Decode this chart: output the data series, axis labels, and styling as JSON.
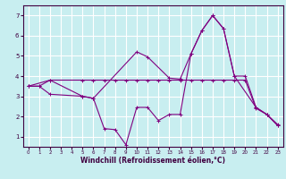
{
  "xlabel": "Windchill (Refroidissement éolien,°C)",
  "background_color": "#c8eef0",
  "line_color": "#800080",
  "grid_color": "#ffffff",
  "xlim": [
    -0.5,
    23.5
  ],
  "ylim": [
    0.5,
    7.5
  ],
  "xticks": [
    0,
    1,
    2,
    3,
    4,
    5,
    6,
    7,
    8,
    9,
    10,
    11,
    12,
    13,
    14,
    15,
    16,
    17,
    18,
    19,
    20,
    21,
    22,
    23
  ],
  "yticks": [
    1,
    2,
    3,
    4,
    5,
    6,
    7
  ],
  "line1_x": [
    0,
    1,
    2,
    5,
    6,
    7,
    8,
    9,
    10,
    11,
    12,
    13,
    14,
    15,
    16,
    17,
    18,
    19,
    20,
    21,
    22,
    23
  ],
  "line1_y": [
    3.5,
    3.5,
    3.8,
    3.8,
    3.8,
    3.8,
    3.8,
    3.8,
    3.8,
    3.8,
    3.8,
    3.8,
    3.8,
    3.8,
    3.8,
    3.8,
    3.8,
    3.8,
    3.8,
    2.4,
    2.1,
    1.6
  ],
  "line2_x": [
    0,
    2,
    5,
    6,
    10,
    11,
    13,
    14,
    15,
    16,
    17,
    18,
    19,
    20,
    21,
    22,
    23
  ],
  "line2_y": [
    3.5,
    3.8,
    3.0,
    2.9,
    5.2,
    4.95,
    3.9,
    3.85,
    5.1,
    6.25,
    7.0,
    6.35,
    4.0,
    4.0,
    2.45,
    2.1,
    1.55
  ],
  "line3_x": [
    0,
    1,
    2,
    5,
    6,
    7,
    8,
    9,
    10,
    11,
    12,
    13,
    14,
    15,
    16,
    17,
    18,
    19,
    21,
    22,
    23
  ],
  "line3_y": [
    3.5,
    3.5,
    3.1,
    3.0,
    2.9,
    1.4,
    1.35,
    0.6,
    2.45,
    2.45,
    1.8,
    2.1,
    2.1,
    5.1,
    6.25,
    7.0,
    6.35,
    4.0,
    2.45,
    2.1,
    1.55
  ]
}
